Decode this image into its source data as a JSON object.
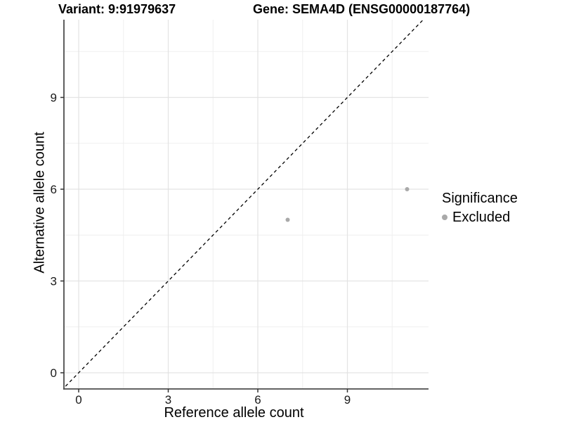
{
  "titles": {
    "variant": "Variant: 9:91979637",
    "gene": "Gene: SEMA4D (ENSG00000187764)"
  },
  "chart_data": {
    "type": "scatter",
    "title": "Variant: 9:91979637   Gene: SEMA4D (ENSG00000187764)",
    "xlabel": "Reference allele count",
    "ylabel": "Alternative allele count",
    "xlim": [
      -0.55,
      11.7
    ],
    "ylim": [
      -0.55,
      11.55
    ],
    "x_breaks": [
      0,
      3,
      6,
      9
    ],
    "y_breaks": [
      0,
      3,
      6,
      9
    ],
    "x_minor_breaks": [
      1.5,
      4.5,
      7.5,
      10.5
    ],
    "y_minor_breaks": [
      1.5,
      4.5,
      7.5,
      10.5
    ],
    "grid": "on",
    "series": [
      {
        "name": "Excluded",
        "points": [
          {
            "x": 7,
            "y": 5
          },
          {
            "x": 11,
            "y": 6
          }
        ]
      }
    ],
    "identity_line": {
      "slope": 1,
      "intercept": 0,
      "style": "dashed",
      "color": "#000000"
    },
    "legend": {
      "position": "right",
      "title": "Significance",
      "items": [
        {
          "label": "Excluded",
          "color": "#a9a9a9"
        }
      ]
    },
    "colors": {
      "point": "#a9a9a9",
      "axis_line": "#4d4d4d",
      "tick_mark": "#333333",
      "tick_label": "#1a1a1a",
      "grid_major": "#e3e3e3",
      "grid_minor": "#efefef",
      "background": "#ffffff"
    }
  }
}
